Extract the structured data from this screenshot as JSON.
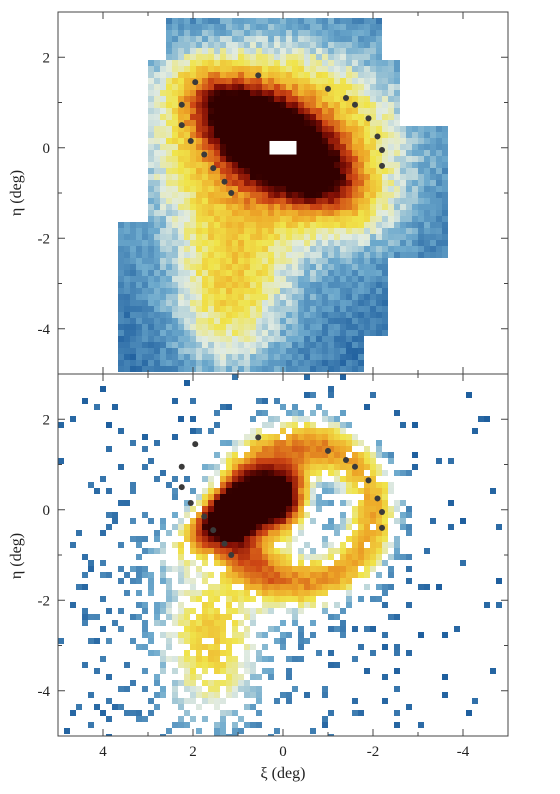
{
  "chart_data": [
    {
      "type": "heatmap",
      "panel": "top",
      "xlim": [
        5,
        -5
      ],
      "ylim": [
        -5,
        3
      ],
      "ylabel": "η (deg)",
      "yticks": [
        2,
        0,
        -2,
        -4
      ],
      "ytick_labels": [
        "2",
        "0",
        "-2",
        "-4"
      ],
      "colors": {
        "low": "#1f5f9e",
        "mid": "#f0e44a",
        "high": "#3a0000"
      },
      "circle_markers": [
        {
          "x": 1.95,
          "y": 1.45
        },
        {
          "x": 2.25,
          "y": 0.95
        },
        {
          "x": 2.25,
          "y": 0.5
        },
        {
          "x": 2.05,
          "y": 0.15
        },
        {
          "x": 1.75,
          "y": -0.15
        },
        {
          "x": 1.55,
          "y": -0.45
        },
        {
          "x": 1.3,
          "y": -0.75
        },
        {
          "x": 1.15,
          "y": -1.0
        },
        {
          "x": 0.55,
          "y": 1.6
        },
        {
          "x": -1.0,
          "y": 1.3
        },
        {
          "x": -1.4,
          "y": 1.1
        },
        {
          "x": -1.6,
          "y": 0.95
        },
        {
          "x": -1.9,
          "y": 0.65
        },
        {
          "x": -2.1,
          "y": 0.25
        },
        {
          "x": -2.2,
          "y": -0.05
        },
        {
          "x": -2.2,
          "y": -0.4
        }
      ]
    },
    {
      "type": "heatmap",
      "panel": "bottom",
      "xlim": [
        5,
        -5
      ],
      "ylim": [
        -5,
        3
      ],
      "xlabel": "ξ (deg)",
      "ylabel": "η (deg)",
      "xticks": [
        4,
        2,
        0,
        -2,
        -4
      ],
      "xtick_labels": [
        "4",
        "2",
        "0",
        "-2",
        "-4"
      ],
      "yticks": [
        2,
        0,
        -2,
        -4
      ],
      "ytick_labels": [
        "2",
        "0",
        "-2",
        "-4"
      ],
      "colors": {
        "low": "#1f5f9e",
        "mid": "#f0e44a",
        "high": "#3a0000"
      },
      "circle_markers": [
        {
          "x": 1.95,
          "y": 1.45
        },
        {
          "x": 2.25,
          "y": 0.95
        },
        {
          "x": 2.25,
          "y": 0.5
        },
        {
          "x": 2.05,
          "y": 0.15
        },
        {
          "x": 1.75,
          "y": -0.15
        },
        {
          "x": 1.55,
          "y": -0.45
        },
        {
          "x": 1.3,
          "y": -0.75
        },
        {
          "x": 1.15,
          "y": -1.0
        },
        {
          "x": 0.55,
          "y": 1.6
        },
        {
          "x": -1.0,
          "y": 1.3
        },
        {
          "x": -1.4,
          "y": 1.1
        },
        {
          "x": -1.6,
          "y": 0.95
        },
        {
          "x": -1.9,
          "y": 0.65
        },
        {
          "x": -2.1,
          "y": 0.25
        },
        {
          "x": -2.2,
          "y": -0.05
        },
        {
          "x": -2.2,
          "y": -0.4
        }
      ]
    }
  ]
}
